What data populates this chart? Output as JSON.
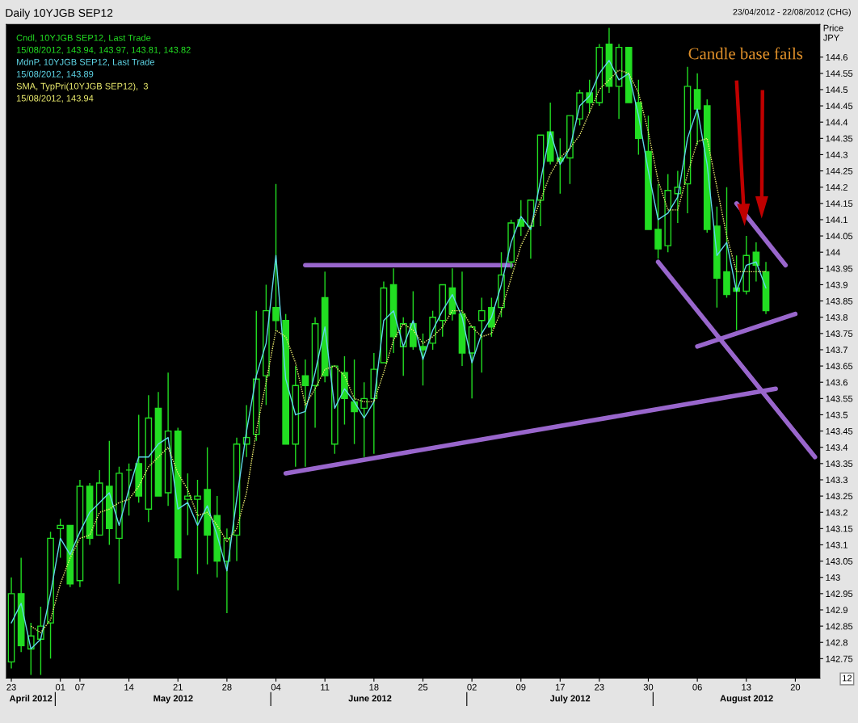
{
  "chart_data": {
    "type": "candlestick",
    "title": "Daily 10YJGB SEP12",
    "subtitle": "23/04/2012 - 22/08/2012 (CHG)",
    "ylabel": "Price\nJPY",
    "categories": [
      "23",
      null,
      null,
      null,
      null,
      "01",
      null,
      "07",
      null,
      null,
      null,
      null,
      "14",
      null,
      null,
      null,
      null,
      "21",
      null,
      null,
      null,
      null,
      "28",
      null,
      null,
      null,
      null,
      "04",
      null,
      null,
      null,
      null,
      "11",
      null,
      null,
      null,
      null,
      "18",
      null,
      null,
      null,
      null,
      "25",
      null,
      null,
      null,
      null,
      "02",
      null,
      null,
      null,
      null,
      "09",
      null,
      null,
      null,
      "17",
      null,
      null,
      null,
      "23",
      null,
      null,
      null,
      null,
      "30",
      null,
      null,
      null,
      null,
      "06",
      null,
      null,
      null,
      null,
      "13",
      null,
      null,
      null,
      null,
      "20",
      null,
      null
    ],
    "series": [
      {
        "name": "Cndl, 10YJGB SEP12, Last Trade",
        "color": "#22dd22",
        "ohlc": [
          [
            142.74,
            143.0,
            142.72,
            142.95
          ],
          [
            142.95,
            143.06,
            142.77,
            142.79
          ],
          [
            142.78,
            142.86,
            142.7,
            142.82
          ],
          [
            142.81,
            142.91,
            142.7,
            142.85
          ],
          [
            142.86,
            143.14,
            142.75,
            143.12
          ],
          [
            143.15,
            143.18,
            143.06,
            143.16
          ],
          [
            143.16,
            143.16,
            142.97,
            142.98
          ],
          [
            142.99,
            143.3,
            142.97,
            143.28
          ],
          [
            143.28,
            143.29,
            143.1,
            143.12
          ],
          [
            143.13,
            143.33,
            143.13,
            143.29
          ],
          [
            143.28,
            143.42,
            143.1,
            143.15
          ],
          [
            143.12,
            143.34,
            142.98,
            143.32
          ],
          [
            143.33,
            143.35,
            143.19,
            143.33
          ],
          [
            143.35,
            143.5,
            143.23,
            143.25
          ],
          [
            143.21,
            143.56,
            143.17,
            143.49
          ],
          [
            143.52,
            143.57,
            143.25,
            143.25
          ],
          [
            143.26,
            143.63,
            143.22,
            143.45
          ],
          [
            143.45,
            143.46,
            142.96,
            143.06
          ],
          [
            143.24,
            143.32,
            143.13,
            143.25
          ],
          [
            143.24,
            143.3,
            143.01,
            143.25
          ],
          [
            143.27,
            143.4,
            143.04,
            143.13
          ],
          [
            143.19,
            143.25,
            143.0,
            143.05
          ],
          [
            143.05,
            143.15,
            142.89,
            143.12
          ],
          [
            143.13,
            143.43,
            143.05,
            143.41
          ],
          [
            143.41,
            143.53,
            143.37,
            143.43
          ],
          [
            143.44,
            143.82,
            143.42,
            143.61
          ],
          [
            143.62,
            143.9,
            143.53,
            143.82
          ],
          [
            143.83,
            144.21,
            143.76,
            143.79
          ],
          [
            143.79,
            143.81,
            143.41,
            143.41
          ],
          [
            143.41,
            143.65,
            143.34,
            143.59
          ],
          [
            143.62,
            143.67,
            143.34,
            143.59
          ],
          [
            143.59,
            143.8,
            143.46,
            143.78
          ],
          [
            143.86,
            143.94,
            143.6,
            143.62
          ],
          [
            143.41,
            143.65,
            143.38,
            143.65
          ],
          [
            143.63,
            143.68,
            143.47,
            143.55
          ],
          [
            143.54,
            143.67,
            143.41,
            143.51
          ],
          [
            143.52,
            143.6,
            143.37,
            143.55
          ],
          [
            143.55,
            143.69,
            143.38,
            143.64
          ],
          [
            143.66,
            143.91,
            143.66,
            143.89
          ],
          [
            143.9,
            143.95,
            143.69,
            143.74
          ],
          [
            143.71,
            143.8,
            143.62,
            143.78
          ],
          [
            143.78,
            143.88,
            143.7,
            143.71
          ],
          [
            143.71,
            143.75,
            143.59,
            143.7
          ],
          [
            143.72,
            143.82,
            143.7,
            143.8
          ],
          [
            143.79,
            143.9,
            143.74,
            143.9
          ],
          [
            143.89,
            143.95,
            143.79,
            143.81
          ],
          [
            143.81,
            143.94,
            143.65,
            143.69
          ],
          [
            143.69,
            143.77,
            143.55,
            143.77
          ],
          [
            143.79,
            143.86,
            143.63,
            143.82
          ],
          [
            143.83,
            143.86,
            143.74,
            143.77
          ],
          [
            143.83,
            144.0,
            143.8,
            143.93
          ],
          [
            143.97,
            144.1,
            143.95,
            144.09
          ],
          [
            144.1,
            144.16,
            144.05,
            144.08
          ],
          [
            144.08,
            144.16,
            143.98,
            144.16
          ],
          [
            144.16,
            144.36,
            144.08,
            144.36
          ],
          [
            144.37,
            144.46,
            144.27,
            144.28
          ],
          [
            144.29,
            144.35,
            144.18,
            144.28
          ],
          [
            144.29,
            144.42,
            144.21,
            144.42
          ],
          [
            144.41,
            144.5,
            144.39,
            144.49
          ],
          [
            144.49,
            144.53,
            144.43,
            144.46
          ],
          [
            144.46,
            144.64,
            144.45,
            144.63
          ],
          [
            144.64,
            144.69,
            144.49,
            144.51
          ],
          [
            144.51,
            144.64,
            144.41,
            144.63
          ],
          [
            144.63,
            144.63,
            144.46,
            144.46
          ],
          [
            144.46,
            144.53,
            144.3,
            144.35
          ],
          [
            144.31,
            144.42,
            144.07,
            144.07
          ],
          [
            144.07,
            144.21,
            143.98,
            144.01
          ],
          [
            144.02,
            144.24,
            144.0,
            144.19
          ],
          [
            144.18,
            144.25,
            144.09,
            144.2
          ],
          [
            144.21,
            144.57,
            144.12,
            144.51
          ],
          [
            144.5,
            144.55,
            144.33,
            144.44
          ],
          [
            144.45,
            144.47,
            144.06,
            144.07
          ],
          [
            144.08,
            144.14,
            143.83,
            143.92
          ],
          [
            143.94,
            144.2,
            143.86,
            143.87
          ],
          [
            143.89,
            143.99,
            143.76,
            143.88
          ],
          [
            143.88,
            144.05,
            143.87,
            143.99
          ],
          [
            144.0,
            144.03,
            143.91,
            143.96
          ],
          [
            143.94,
            143.97,
            143.81,
            143.82
          ],
          null,
          null,
          null,
          null,
          null
        ]
      },
      {
        "type": "line",
        "name": "MdnP, 10YJGB SEP12, Last Trade",
        "color": "#5fd7e8",
        "values": [
          142.86,
          142.92,
          142.78,
          142.81,
          142.95,
          143.12,
          143.07,
          143.14,
          143.2,
          143.23,
          143.26,
          143.16,
          143.27,
          143.37,
          143.37,
          143.41,
          143.43,
          143.21,
          143.23,
          143.16,
          143.22,
          143.13,
          143.02,
          143.24,
          143.45,
          143.62,
          143.72,
          143.99,
          143.61,
          143.5,
          143.51,
          143.63,
          143.77,
          143.52,
          143.58,
          143.54,
          143.49,
          143.54,
          143.79,
          143.82,
          143.71,
          143.79,
          143.67,
          143.76,
          143.82,
          143.87,
          143.8,
          143.66,
          143.75,
          143.8,
          143.9,
          144.03,
          144.11,
          144.07,
          144.22,
          144.37,
          144.27,
          144.32,
          144.45,
          144.48,
          144.55,
          144.59,
          144.53,
          144.55,
          144.42,
          144.25,
          144.1,
          144.12,
          144.17,
          144.35,
          144.44,
          144.27,
          143.99,
          144.03,
          143.88,
          143.96,
          143.97,
          143.89,
          null,
          null,
          null,
          null,
          null
        ]
      },
      {
        "type": "line",
        "name": "SMA, TypPri(10YJGB SEP12),  3",
        "color": "#f0f070",
        "line_style": "dotted",
        "values": [
          null,
          null,
          142.85,
          142.83,
          142.87,
          142.98,
          143.06,
          143.12,
          143.13,
          143.2,
          143.21,
          143.23,
          143.24,
          143.28,
          143.34,
          143.37,
          143.4,
          143.32,
          143.27,
          143.19,
          143.2,
          143.16,
          143.11,
          143.15,
          143.26,
          143.45,
          143.6,
          143.76,
          143.74,
          143.66,
          143.53,
          143.58,
          143.64,
          143.65,
          143.62,
          143.55,
          143.54,
          143.54,
          143.63,
          143.73,
          143.78,
          143.76,
          143.72,
          143.74,
          143.77,
          143.82,
          143.82,
          143.77,
          143.74,
          143.75,
          143.82,
          143.92,
          144.02,
          144.08,
          144.16,
          144.24,
          144.29,
          144.32,
          144.36,
          144.43,
          144.5,
          144.53,
          144.56,
          144.55,
          144.49,
          144.37,
          144.22,
          144.13,
          144.13,
          144.24,
          144.34,
          144.35,
          144.2,
          144.05,
          143.94,
          143.94,
          143.94,
          143.94,
          null,
          null,
          null,
          null,
          null
        ]
      },
      {
        "type": "line",
        "color": "#9966cc",
        "values": [
          null,
          null,
          null,
          null,
          null,
          null,
          null,
          null,
          null,
          null,
          null,
          null,
          null,
          null,
          null,
          null,
          null,
          null,
          null,
          null,
          null,
          null,
          null,
          null,
          null,
          null,
          null,
          null,
          null,
          null,
          143.96,
          null,
          null,
          null,
          null,
          null,
          null,
          null,
          null,
          null,
          null,
          null,
          null,
          null,
          null,
          null,
          null,
          null,
          null,
          null,
          null,
          143.96,
          null,
          null,
          null,
          null,
          null,
          null,
          null,
          null,
          null,
          null,
          null,
          null,
          null,
          null,
          null,
          null,
          null,
          null,
          null,
          null,
          null,
          null,
          null,
          null,
          null,
          null,
          null,
          null,
          null,
          null,
          null
        ]
      },
      {
        "type": "line",
        "color": "#9966cc",
        "values": [
          null,
          null,
          null,
          null,
          null,
          null,
          null,
          null,
          null,
          null,
          null,
          null,
          null,
          null,
          null,
          null,
          null,
          null,
          null,
          null,
          null,
          null,
          null,
          null,
          null,
          null,
          null,
          null,
          143.32,
          null,
          null,
          null,
          null,
          null,
          null,
          null,
          null,
          null,
          null,
          null,
          null,
          null,
          null,
          null,
          null,
          null,
          null,
          null,
          null,
          null,
          null,
          null,
          null,
          null,
          null,
          null,
          null,
          null,
          null,
          null,
          null,
          null,
          null,
          null,
          null,
          null,
          null,
          null,
          null,
          null,
          null,
          null,
          null,
          null,
          null,
          null,
          null,
          null,
          143.58,
          null,
          null,
          null,
          null
        ]
      },
      {
        "type": "line",
        "color": "#9966cc",
        "values": [
          null,
          null,
          null,
          null,
          null,
          null,
          null,
          null,
          null,
          null,
          null,
          null,
          null,
          null,
          null,
          null,
          null,
          null,
          null,
          null,
          null,
          null,
          null,
          null,
          null,
          null,
          null,
          null,
          null,
          null,
          null,
          null,
          null,
          null,
          null,
          null,
          null,
          null,
          null,
          null,
          null,
          null,
          null,
          null,
          null,
          null,
          null,
          null,
          null,
          null,
          null,
          null,
          null,
          null,
          null,
          null,
          null,
          null,
          null,
          null,
          null,
          null,
          null,
          null,
          null,
          null,
          143.97,
          null,
          null,
          null,
          null,
          null,
          null,
          null,
          null,
          null,
          null,
          null,
          null,
          null,
          null,
          null,
          143.37
        ]
      },
      {
        "type": "line",
        "color": "#9966cc",
        "values": [
          null,
          null,
          null,
          null,
          null,
          null,
          null,
          null,
          null,
          null,
          null,
          null,
          null,
          null,
          null,
          null,
          null,
          null,
          null,
          null,
          null,
          null,
          null,
          null,
          null,
          null,
          null,
          null,
          null,
          null,
          null,
          null,
          null,
          null,
          null,
          null,
          null,
          null,
          null,
          null,
          null,
          null,
          null,
          null,
          null,
          null,
          null,
          null,
          null,
          null,
          null,
          null,
          null,
          null,
          null,
          null,
          null,
          null,
          null,
          null,
          null,
          null,
          null,
          null,
          null,
          null,
          null,
          null,
          null,
          null,
          143.71,
          null,
          null,
          null,
          null,
          null,
          null,
          null,
          null,
          null,
          143.81,
          null,
          null
        ]
      },
      {
        "type": "line",
        "color": "#9966cc",
        "values": [
          null,
          null,
          null,
          null,
          null,
          null,
          null,
          null,
          null,
          null,
          null,
          null,
          null,
          null,
          null,
          null,
          null,
          null,
          null,
          null,
          null,
          null,
          null,
          null,
          null,
          null,
          null,
          null,
          null,
          null,
          null,
          null,
          null,
          null,
          null,
          null,
          null,
          null,
          null,
          null,
          null,
          null,
          null,
          null,
          null,
          null,
          null,
          null,
          null,
          null,
          null,
          null,
          null,
          null,
          null,
          null,
          null,
          null,
          null,
          null,
          null,
          null,
          null,
          null,
          null,
          null,
          null,
          null,
          null,
          null,
          null,
          null,
          null,
          null,
          144.15,
          null,
          null,
          null,
          null,
          143.96,
          null,
          null,
          null
        ]
      }
    ],
    "ylim": [
      142.69,
      144.7
    ],
    "yticks": [
      142.75,
      142.8,
      142.85,
      142.9,
      142.95,
      143,
      143.05,
      143.1,
      143.15,
      143.2,
      143.25,
      143.3,
      143.35,
      143.4,
      143.45,
      143.5,
      143.55,
      143.6,
      143.65,
      143.7,
      143.75,
      143.8,
      143.85,
      143.9,
      143.95,
      144,
      144.05,
      144.1,
      144.15,
      144.2,
      144.25,
      144.3,
      144.35,
      144.4,
      144.45,
      144.5,
      144.55,
      144.6
    ],
    "legend": "top left",
    "annotations": [
      "15/08/2012, 143.94, 143.97, 143.81, 143.82",
      "15/08/2012, 143.89",
      "15/08/2012, 143.94",
      "Candle base fails",
      "12",
      "April 2012",
      "May 2012",
      "June 2012",
      "July 2012",
      "August 2012"
    ]
  }
}
